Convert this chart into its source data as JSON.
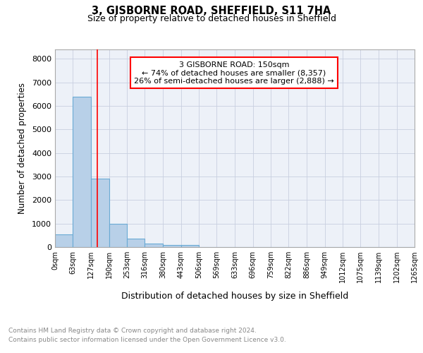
{
  "title1": "3, GISBORNE ROAD, SHEFFIELD, S11 7HA",
  "title2": "Size of property relative to detached houses in Sheffield",
  "xlabel": "Distribution of detached houses by size in Sheffield",
  "ylabel": "Number of detached properties",
  "bin_edges": [
    0,
    63,
    127,
    190,
    253,
    316,
    380,
    443,
    506,
    569,
    633,
    696,
    759,
    822,
    886,
    949,
    1012,
    1075,
    1139,
    1202,
    1265
  ],
  "bar_heights": [
    550,
    6400,
    2900,
    1000,
    375,
    160,
    90,
    80,
    15,
    8,
    5,
    4,
    3,
    2,
    2,
    1,
    1,
    1,
    0,
    0
  ],
  "bar_color": "#b8d0e8",
  "bar_edge_color": "#6aaad4",
  "vline_x": 150,
  "vline_color": "red",
  "annotation_line1": "3 GISBORNE ROAD: 150sqm",
  "annotation_line2": "← 74% of detached houses are smaller (8,357)",
  "annotation_line3": "26% of semi-detached houses are larger (2,888) →",
  "ylim": [
    0,
    8400
  ],
  "yticks": [
    0,
    1000,
    2000,
    3000,
    4000,
    5000,
    6000,
    7000,
    8000
  ],
  "grid_color": "#c8cfe0",
  "background_color": "#edf1f8",
  "footer1": "Contains HM Land Registry data © Crown copyright and database right 2024.",
  "footer2": "Contains public sector information licensed under the Open Government Licence v3.0.",
  "tick_labels": [
    "0sqm",
    "63sqm",
    "127sqm",
    "190sqm",
    "253sqm",
    "316sqm",
    "380sqm",
    "443sqm",
    "506sqm",
    "569sqm",
    "633sqm",
    "696sqm",
    "759sqm",
    "822sqm",
    "886sqm",
    "949sqm",
    "1012sqm",
    "1075sqm",
    "1139sqm",
    "1202sqm",
    "1265sqm"
  ]
}
